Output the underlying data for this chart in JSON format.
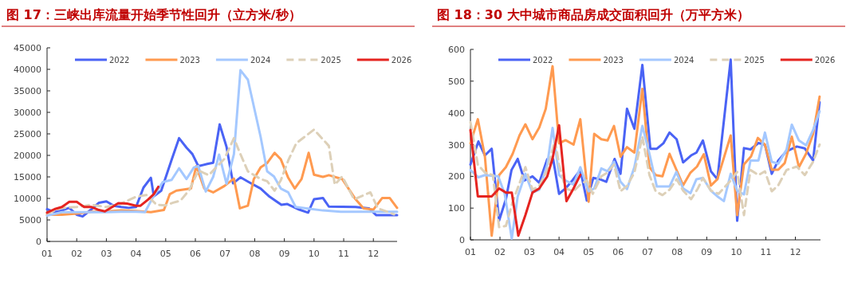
{
  "chart_data": [
    {
      "type": "line",
      "title": "图 17：三峡出库流量开始季节性回升（立方米/秒）",
      "legend": "top",
      "xlim": [
        1,
        12.8
      ],
      "ylim": [
        0,
        45000
      ],
      "xticks": [
        {
          "value": 1,
          "label": "01"
        },
        {
          "value": 2,
          "label": "02"
        },
        {
          "value": 3,
          "label": "03"
        },
        {
          "value": 4,
          "label": "04"
        },
        {
          "value": 5,
          "label": "05"
        },
        {
          "value": 6,
          "label": "06"
        },
        {
          "value": 7,
          "label": "07"
        },
        {
          "value": 8,
          "label": "08"
        },
        {
          "value": 9,
          "label": "09"
        },
        {
          "value": 10,
          "label": "10"
        },
        {
          "value": 11,
          "label": "11"
        },
        {
          "value": 12,
          "label": "12"
        }
      ],
      "yticks": [
        0,
        5000,
        10000,
        15000,
        20000,
        25000,
        30000,
        35000,
        40000,
        45000
      ],
      "series": [
        {
          "name": "2022",
          "color": "#4a63f5",
          "x": [
            1,
            1.25,
            1.5,
            1.75,
            2,
            2.2,
            2.5,
            2.75,
            3,
            3.25,
            3.5,
            3.75,
            4,
            4.25,
            4.5,
            4.6,
            4.85,
            5.2,
            5.45,
            5.7,
            5.9,
            6.1,
            6.4,
            6.6,
            6.82,
            7.05,
            7.27,
            7.52,
            7.8,
            8.2,
            8.5,
            8.9,
            9.1,
            9.5,
            9.8,
            10,
            10.3,
            10.5,
            11.4,
            11.85,
            12.1,
            12.8
          ],
          "values": [
            7500,
            6800,
            7200,
            7800,
            6200,
            5800,
            7500,
            9000,
            9300,
            8300,
            8000,
            7800,
            8000,
            12500,
            14800,
            10500,
            11800,
            19000,
            24000,
            21800,
            20300,
            17500,
            18000,
            18300,
            27200,
            22000,
            13500,
            14900,
            13800,
            12300,
            10400,
            8500,
            8700,
            7400,
            6700,
            9800,
            10100,
            8100,
            8000,
            7700,
            6100,
            6100
          ]
        },
        {
          "name": "2023",
          "color": "#ff9a50",
          "x": [
            1,
            1.5,
            2,
            2.5,
            3,
            3.5,
            4,
            4.5,
            4.94,
            5.14,
            5.36,
            5.85,
            6.03,
            6.3,
            6.6,
            6.98,
            7.3,
            7.5,
            7.77,
            7.97,
            8.2,
            8.42,
            8.67,
            8.88,
            9.13,
            9.35,
            9.58,
            9.82,
            10,
            10.3,
            10.5,
            10.95,
            11.4,
            11.67,
            12,
            12.3,
            12.55,
            12.8
          ],
          "values": [
            6200,
            6200,
            6500,
            6900,
            7000,
            7200,
            7100,
            6800,
            7300,
            11000,
            11800,
            12300,
            17500,
            12300,
            11400,
            12900,
            14600,
            7700,
            8300,
            14500,
            17200,
            18200,
            20600,
            19100,
            14800,
            12300,
            14500,
            20600,
            15500,
            15000,
            15400,
            14500,
            9800,
            7700,
            7400,
            10100,
            10100,
            7800
          ]
        },
        {
          "name": "2024",
          "color": "#a4c8ff",
          "x": [
            1,
            1.5,
            2,
            2.5,
            3,
            3.5,
            4,
            4.3,
            4.55,
            4.9,
            5.2,
            5.45,
            5.7,
            5.95,
            6.1,
            6.35,
            6.6,
            6.8,
            7.05,
            7.3,
            7.52,
            7.77,
            8.2,
            8.42,
            8.65,
            8.88,
            9.13,
            9.38,
            9.85,
            10.3,
            10.9,
            12.8
          ],
          "values": [
            6000,
            6800,
            6800,
            6800,
            6800,
            6900,
            6900,
            6800,
            10000,
            13800,
            14300,
            17000,
            14500,
            17200,
            17500,
            11600,
            15000,
            20200,
            13400,
            20300,
            39800,
            37600,
            24300,
            16300,
            15100,
            12300,
            11400,
            8000,
            7600,
            7200,
            6900,
            6900
          ]
        },
        {
          "name": "2025",
          "color": "#ddd0b8",
          "line_style": "dashed",
          "x": [
            1,
            1.5,
            2,
            2.5,
            3,
            3.5,
            4,
            4.35,
            4.7,
            5,
            5.25,
            5.5,
            5.8,
            6.1,
            6.45,
            6.98,
            7.3,
            7.5,
            7.77,
            8.2,
            8.42,
            8.67,
            8.88,
            9.13,
            9.4,
            10,
            10.5,
            10.7,
            10.95,
            11.35,
            11.9,
            12.15,
            12.7
          ],
          "values": [
            6500,
            7800,
            8000,
            8500,
            8000,
            8800,
            10400,
            10800,
            8500,
            8400,
            9000,
            9500,
            12000,
            16500,
            15400,
            19200,
            24000,
            20600,
            16300,
            14500,
            14000,
            11800,
            14200,
            18800,
            22800,
            26000,
            22200,
            13200,
            15100,
            9800,
            11400,
            7700,
            6300
          ]
        },
        {
          "name": "2026",
          "color": "#e52420",
          "x": [
            1,
            1.25,
            1.5,
            1.75,
            2,
            2.25,
            2.5,
            2.75,
            2.95,
            3.2,
            3.4,
            3.7,
            4,
            4.15,
            4.4,
            4.6,
            4.75
          ],
          "values": [
            6700,
            7500,
            8000,
            9200,
            9200,
            8000,
            8000,
            7300,
            7000,
            8000,
            8900,
            8800,
            8300,
            8300,
            9700,
            11000,
            12700
          ]
        }
      ]
    },
    {
      "type": "line",
      "title": "图 18：30 大中城市商品房成交面积回升（万平方米）",
      "legend": "top",
      "xlim": [
        1,
        12.85
      ],
      "ylim": [
        0,
        600
      ],
      "xticks": [
        {
          "value": 1,
          "label": "01"
        },
        {
          "value": 2,
          "label": "02"
        },
        {
          "value": 3,
          "label": "03"
        },
        {
          "value": 4,
          "label": "04"
        },
        {
          "value": 5,
          "label": "05"
        },
        {
          "value": 6,
          "label": "06"
        },
        {
          "value": 7,
          "label": "07"
        },
        {
          "value": 8,
          "label": "08"
        },
        {
          "value": 9,
          "label": "09"
        },
        {
          "value": 10,
          "label": "10"
        },
        {
          "value": 11,
          "label": "11"
        },
        {
          "value": 12,
          "label": "12"
        }
      ],
      "yticks": [
        0,
        100,
        200,
        300,
        400,
        500,
        600
      ],
      "series": [
        {
          "name": "2022",
          "color": "#4a63f5",
          "x": [
            1,
            1.27,
            1.49,
            1.72,
            1.97,
            2.2,
            2.39,
            2.6,
            2.83,
            3.1,
            3.33,
            3.6,
            3.8,
            4,
            4.22,
            4.45,
            4.72,
            4.94,
            5.16,
            5.38,
            5.6,
            5.88,
            6.08,
            6.3,
            6.55,
            6.82,
            7.09,
            7.31,
            7.53,
            7.74,
            7.98,
            8.2,
            8.47,
            8.65,
            8.87,
            9.14,
            9.36,
            9.81,
            10.03,
            10.26,
            10.48,
            10.75,
            10.97,
            11.2,
            11.42,
            11.7,
            12.05,
            12.32,
            12.6,
            12.82
          ],
          "values": [
            237,
            310,
            266,
            287,
            61,
            128,
            220,
            255,
            187,
            200,
            180,
            254,
            254,
            145,
            162,
            187,
            220,
            124,
            195,
            191,
            183,
            255,
            208,
            413,
            350,
            551,
            287,
            287,
            304,
            338,
            317,
            244,
            266,
            275,
            313,
            216,
            191,
            568,
            60,
            289,
            285,
            305,
            300,
            208,
            250,
            279,
            294,
            288,
            250,
            434
          ]
        },
        {
          "name": "2023",
          "color": "#ff9a50",
          "x": [
            1,
            1.25,
            1.49,
            1.72,
            1.97,
            2.2,
            2.43,
            2.66,
            2.86,
            3.1,
            3.33,
            3.55,
            3.78,
            4,
            4.22,
            4.49,
            4.72,
            5,
            5.19,
            5.43,
            5.64,
            5.86,
            6.08,
            6.3,
            6.55,
            6.82,
            7.06,
            7.27,
            7.5,
            7.74,
            8.2,
            8.45,
            8.67,
            8.9,
            9.14,
            9.36,
            9.81,
            10.03,
            10.26,
            10.5,
            10.73,
            10.97,
            11.2,
            11.42,
            11.64,
            11.88,
            12.12,
            12.36,
            12.6,
            12.82
          ],
          "values": [
            304,
            380,
            262,
            13,
            204,
            229,
            271,
            329,
            364,
            317,
            354,
            413,
            547,
            304,
            314,
            300,
            380,
            120,
            334,
            317,
            313,
            359,
            262,
            292,
            275,
            476,
            229,
            204,
            200,
            271,
            172,
            212,
            231,
            270,
            171,
            191,
            329,
            78,
            238,
            263,
            321,
            300,
            221,
            221,
            242,
            325,
            229,
            271,
            334,
            451
          ]
        },
        {
          "name": "2024",
          "color": "#a4c8ff",
          "x": [
            1,
            1.27,
            1.49,
            1.94,
            2.16,
            2.4,
            2.6,
            2.86,
            3.1,
            3.33,
            3.6,
            3.78,
            4,
            4.22,
            4.49,
            4.72,
            5,
            5.19,
            5.43,
            5.64,
            5.86,
            6.08,
            6.3,
            6.55,
            6.82,
            7.06,
            7.31,
            7.74,
            7.97,
            8.2,
            8.45,
            8.65,
            8.87,
            9.14,
            9.36,
            9.58,
            9.81,
            10.03,
            10.26,
            10.48,
            10.75,
            10.97,
            11.2,
            11.42,
            11.7,
            11.88,
            12.12,
            12.36,
            12.6,
            12.82
          ],
          "values": [
            220,
            197,
            204,
            200,
            145,
            4,
            137,
            208,
            149,
            158,
            237,
            353,
            204,
            187,
            174,
            229,
            153,
            162,
            225,
            216,
            246,
            183,
            160,
            229,
            359,
            271,
            168,
            168,
            214,
            162,
            147,
            191,
            195,
            155,
            137,
            122,
            208,
            155,
            143,
            250,
            250,
            338,
            246,
            240,
            284,
            363,
            313,
            298,
            346,
            405
          ]
        },
        {
          "name": "2025",
          "color": "#ddd0b8",
          "line_style": "dashed",
          "x": [
            1,
            1.25,
            1.49,
            1.76,
            1.97,
            2.2,
            2.43,
            2.66,
            2.86,
            3.1,
            3.33,
            3.6,
            3.86,
            4,
            4.22,
            4.49,
            4.72,
            4.94,
            5.14,
            5.43,
            5.64,
            5.86,
            6.08,
            6.3,
            6.55,
            6.82,
            7.06,
            7.27,
            7.5,
            7.74,
            7.98,
            8.2,
            8.47,
            8.7,
            8.87,
            9.14,
            9.4,
            9.81,
            10.03,
            10.26,
            10.48,
            10.75,
            10.97,
            11.2,
            11.42,
            11.7,
            12.05,
            12.32,
            12.6,
            12.82
          ],
          "values": [
            371,
            237,
            212,
            204,
            40,
            44,
            120,
            178,
            229,
            158,
            170,
            220,
            313,
            237,
            162,
            153,
            174,
            187,
            145,
            200,
            212,
            237,
            153,
            170,
            212,
            325,
            204,
            153,
            141,
            158,
            191,
            155,
            128,
            162,
            195,
            155,
            145,
            187,
            214,
            78,
            220,
            204,
            216,
            153,
            172,
            220,
            231,
            204,
            246,
            300
          ]
        },
        {
          "name": "2026",
          "color": "#e52420",
          "x": [
            1,
            1.25,
            1.72,
            1.97,
            2.2,
            2.4,
            2.62,
            2.86,
            3.1,
            3.33,
            3.6,
            3.78,
            4,
            4.25,
            4.49,
            4.72
          ],
          "values": [
            346,
            137,
            137,
            162,
            149,
            149,
            13,
            78,
            149,
            162,
            200,
            256,
            361,
            122,
            162,
            205
          ]
        }
      ]
    }
  ]
}
